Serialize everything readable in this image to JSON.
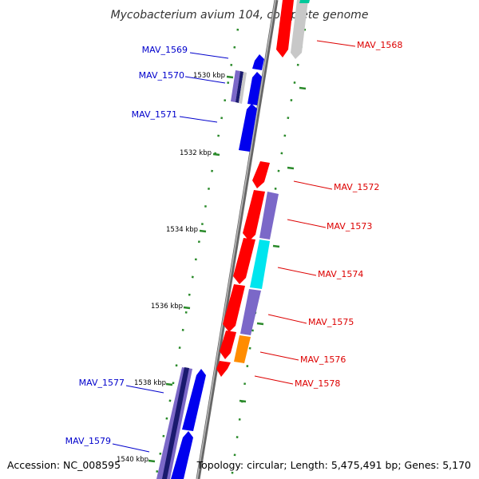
{
  "title": "Mycobacterium avium 104, complete genome",
  "footer": {
    "accession": "Accession: NC_008595",
    "info": "Topology: circular; Length: 5,475,491 bp; Genes: 5,170"
  },
  "ruler_labels": [
    "1530 kbp",
    "1532 kbp",
    "1534 kbp",
    "1536 kbp",
    "1538 kbp",
    "1540 kbp"
  ],
  "colors": {
    "forward_label": "#0000cc",
    "reverse_label": "#dd0000",
    "backbone": "#888888",
    "ruler_dots": "#2a8a2a",
    "red": "#ff0000",
    "blue": "#0000ee",
    "navy": "#1a1a6e",
    "slate_blue": "#7b68c8",
    "cyan": "#00e5ee",
    "orange": "#ff8c00",
    "light_gray": "#c8c8c8",
    "teal": "#00c89a"
  },
  "labels": {
    "mav_1568": "MAV_1568",
    "mav_1569": "MAV_1569",
    "mav_1570": "MAV_1570",
    "mav_1571": "MAV_1571",
    "mav_1572": "MAV_1572",
    "mav_1573": "MAV_1573",
    "mav_1574": "MAV_1574",
    "mav_1575": "MAV_1575",
    "mav_1576": "MAV_1576",
    "mav_1577": "MAV_1577",
    "mav_1578": "MAV_1578",
    "mav_1579": "MAV_1579"
  }
}
